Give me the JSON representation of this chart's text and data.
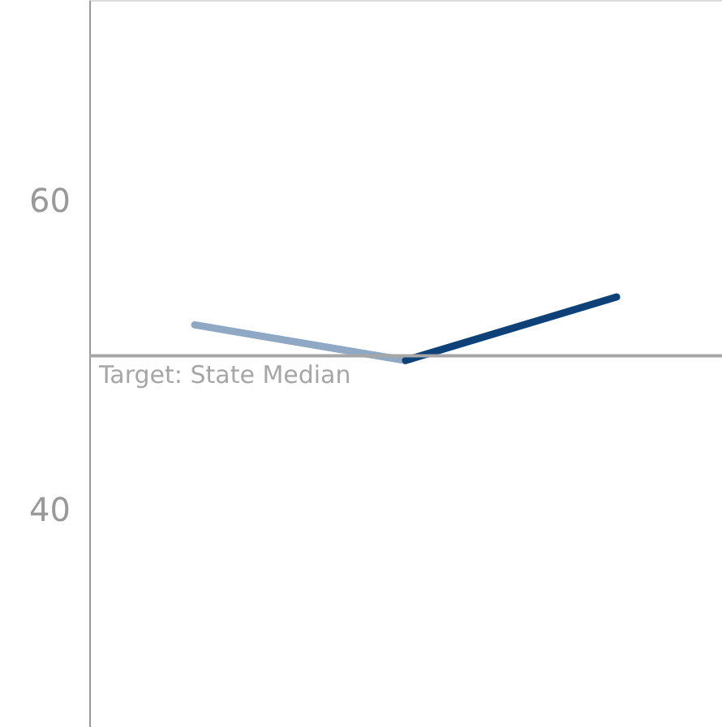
{
  "chart_data": {
    "type": "line",
    "categories": [
      null,
      null,
      null
    ],
    "series": [
      {
        "color": "#8fa8c4",
        "values": [
          52.0,
          49.7,
          null
        ]
      },
      {
        "color": "#0d4177",
        "values": [
          null,
          49.7,
          53.8
        ]
      }
    ],
    "ylim": [
      26,
      73
    ],
    "yticks": [
      40,
      60
    ],
    "grid": false,
    "tick_labels": "y",
    "marker": "none",
    "line_style": "solid",
    "ref_lines": [
      {
        "axis": "y",
        "value": 50,
        "label": "Target: State Median",
        "color": "#a6a6a6"
      }
    ]
  }
}
